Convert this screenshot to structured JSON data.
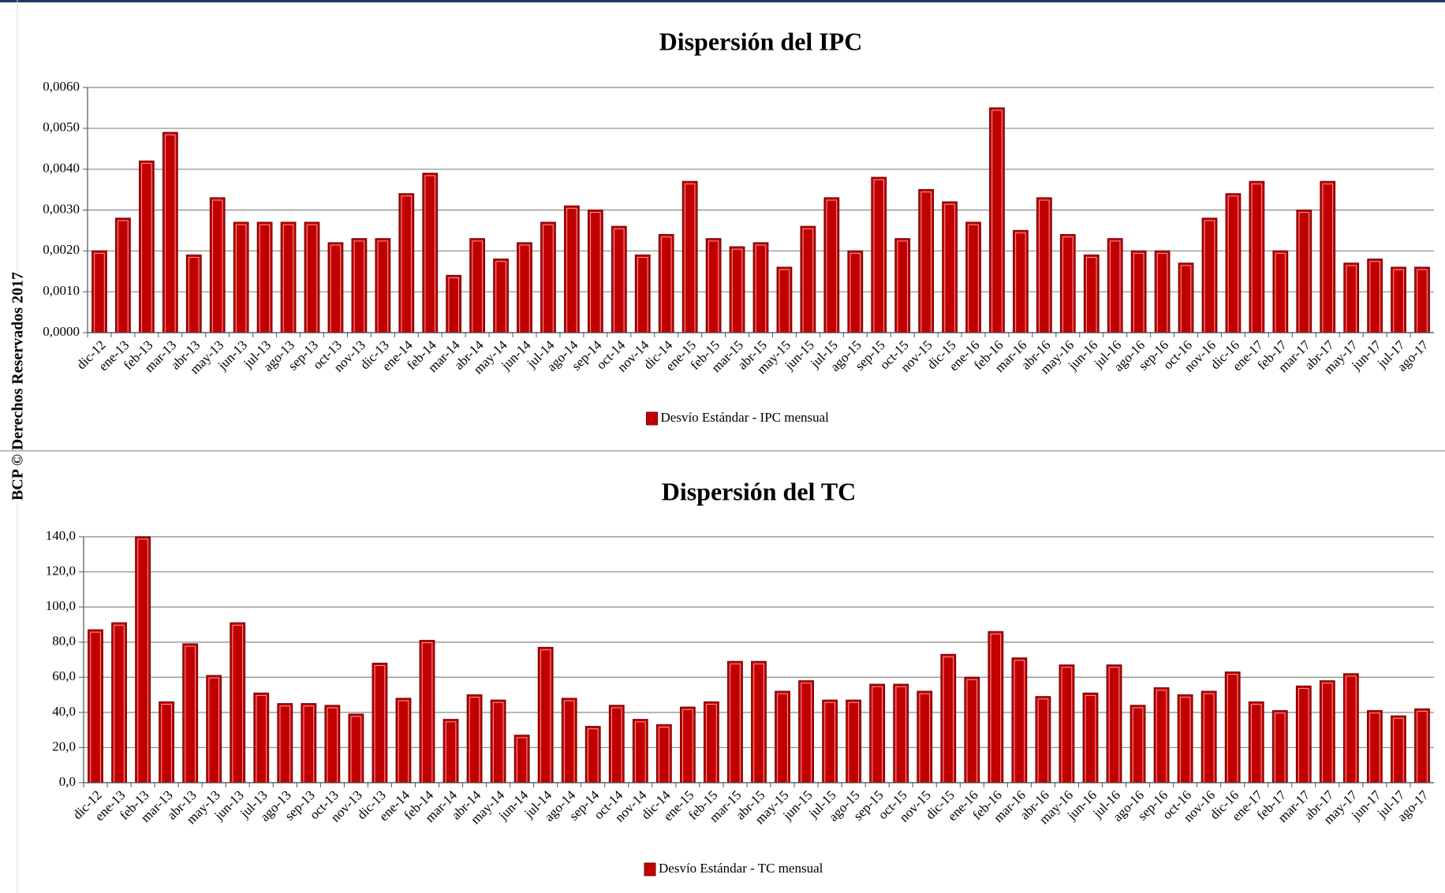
{
  "side_note": "BCP © Derechos Reservados 2017",
  "chart_data": [
    {
      "type": "bar",
      "title": "Dispersión del IPC",
      "legend": "bottom",
      "grid": true,
      "color": "#c00000",
      "series": [
        {
          "name": "Desvío Estándar - IPC mensual",
          "color": "#c00000",
          "values": [
            0.002,
            0.0028,
            0.0042,
            0.0049,
            0.0019,
            0.0033,
            0.0027,
            0.0027,
            0.0027,
            0.0027,
            0.0022,
            0.0023,
            0.0023,
            0.0034,
            0.0039,
            0.0014,
            0.0023,
            0.0018,
            0.0022,
            0.0027,
            0.0031,
            0.003,
            0.0026,
            0.0019,
            0.0024,
            0.0037,
            0.0023,
            0.0021,
            0.0022,
            0.0016,
            0.0026,
            0.0033,
            0.002,
            0.0038,
            0.0023,
            0.0035,
            0.0032,
            0.0027,
            0.0055,
            0.0025,
            0.0033,
            0.0024,
            0.0019,
            0.0023,
            0.002,
            0.002,
            0.0017,
            0.0028,
            0.0034,
            0.0037,
            0.002,
            0.003,
            0.0037,
            0.0017,
            0.0018,
            0.0016,
            0.0016
          ]
        }
      ],
      "categories": [
        "dic-12",
        "ene-13",
        "feb-13",
        "mar-13",
        "abr-13",
        "may-13",
        "jun-13",
        "jul-13",
        "ago-13",
        "sep-13",
        "oct-13",
        "nov-13",
        "dic-13",
        "ene-14",
        "feb-14",
        "mar-14",
        "abr-14",
        "may-14",
        "jun-14",
        "jul-14",
        "ago-14",
        "sep-14",
        "oct-14",
        "nov-14",
        "dic-14",
        "ene-15",
        "feb-15",
        "mar-15",
        "abr-15",
        "may-15",
        "jun-15",
        "jul-15",
        "ago-15",
        "sep-15",
        "oct-15",
        "nov-15",
        "dic-15",
        "ene-16",
        "feb-16",
        "mar-16",
        "abr-16",
        "may-16",
        "jun-16",
        "jul-16",
        "ago-16",
        "sep-16",
        "oct-16",
        "nov-16",
        "dic-16",
        "ene-17",
        "feb-17",
        "mar-17",
        "abr-17",
        "may-17",
        "jun-17",
        "jul-17",
        "ago-17"
      ],
      "ylim": [
        0,
        0.006
      ],
      "yticks": [
        {
          "value": 0,
          "label": "0,0000"
        },
        {
          "value": 0.001,
          "label": "0,0010"
        },
        {
          "value": 0.002,
          "label": "0,0020"
        },
        {
          "value": 0.003,
          "label": "0,0030"
        },
        {
          "value": 0.004,
          "label": "0,0040"
        },
        {
          "value": 0.005,
          "label": "0,0050"
        },
        {
          "value": 0.006,
          "label": "0,0060"
        }
      ]
    },
    {
      "type": "bar",
      "title": "Dispersión del TC",
      "legend": "bottom",
      "grid": true,
      "color": "#c00000",
      "series": [
        {
          "name": "Desvío Estándar - TC mensual",
          "color": "#c00000",
          "values": [
            87,
            91,
            140,
            46,
            79,
            61,
            91,
            51,
            45,
            45,
            44,
            39,
            68,
            48,
            81,
            36,
            50,
            47,
            27,
            77,
            48,
            32,
            44,
            36,
            33,
            43,
            46,
            69,
            69,
            52,
            58,
            47,
            47,
            56,
            56,
            52,
            73,
            60,
            86,
            71,
            49,
            67,
            51,
            67,
            44,
            54,
            50,
            52,
            63,
            46,
            41,
            55,
            58,
            62,
            41,
            38,
            42
          ]
        }
      ],
      "categories": [
        "dic-12",
        "ene-13",
        "feb-13",
        "mar-13",
        "abr-13",
        "may-13",
        "jun-13",
        "jul-13",
        "ago-13",
        "sep-13",
        "oct-13",
        "nov-13",
        "dic-13",
        "ene-14",
        "feb-14",
        "mar-14",
        "abr-14",
        "may-14",
        "jun-14",
        "jul-14",
        "ago-14",
        "sep-14",
        "oct-14",
        "nov-14",
        "dic-14",
        "ene-15",
        "feb-15",
        "mar-15",
        "abr-15",
        "may-15",
        "jun-15",
        "jul-15",
        "ago-15",
        "sep-15",
        "oct-15",
        "nov-15",
        "dic-15",
        "ene-16",
        "feb-16",
        "mar-16",
        "abr-16",
        "may-16",
        "jun-16",
        "jul-16",
        "ago-16",
        "sep-16",
        "oct-16",
        "nov-16",
        "dic-16",
        "ene-17",
        "feb-17",
        "mar-17",
        "abr-17",
        "may-17",
        "jun-17",
        "jul-17",
        "ago-17"
      ],
      "ylim": [
        0,
        140
      ],
      "yticks": [
        {
          "value": 0,
          "label": "0,0"
        },
        {
          "value": 20,
          "label": "20,0"
        },
        {
          "value": 40,
          "label": "40,0"
        },
        {
          "value": 60,
          "label": "60,0"
        },
        {
          "value": 80,
          "label": "80,0"
        },
        {
          "value": 100,
          "label": "100,0"
        },
        {
          "value": 120,
          "label": "120,0"
        },
        {
          "value": 140,
          "label": "140,0"
        }
      ]
    }
  ]
}
